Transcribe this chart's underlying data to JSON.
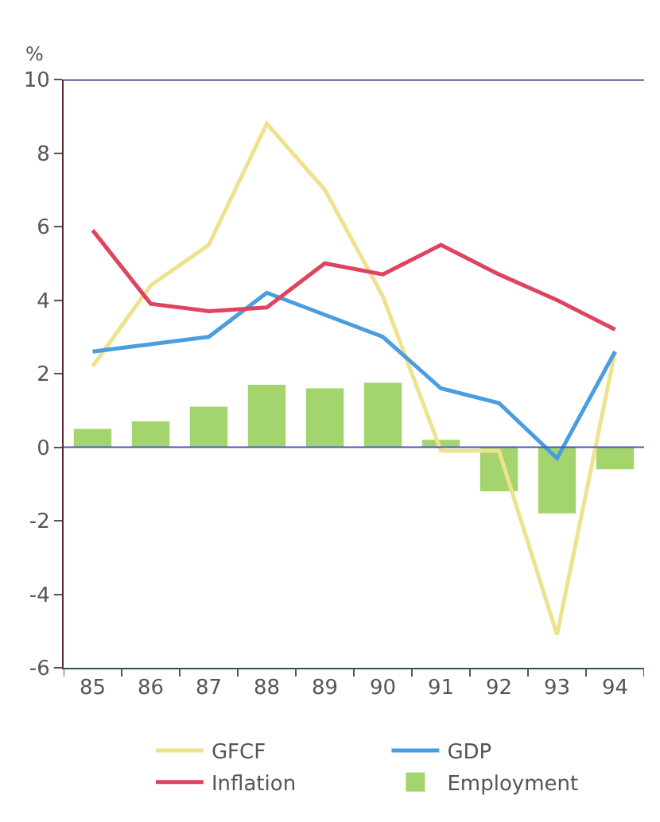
{
  "chart_data": {
    "type": "line",
    "ylabel": "%",
    "categories": [
      "85",
      "86",
      "87",
      "88",
      "89",
      "90",
      "91",
      "92",
      "93",
      "94"
    ],
    "series": [
      {
        "name": "GFCF",
        "color": "#eee28e",
        "values": [
          2.2,
          4.4,
          5.5,
          8.8,
          7.0,
          4.1,
          -0.1,
          -0.1,
          -5.1,
          2.6
        ]
      },
      {
        "name": "GDP",
        "color": "#4a9ee0",
        "values": [
          2.6,
          2.8,
          3.0,
          4.2,
          3.6,
          3.0,
          1.6,
          1.2,
          -0.3,
          2.6
        ]
      },
      {
        "name": "Inflation",
        "color": "#e0435e",
        "values": [
          5.9,
          3.9,
          3.7,
          3.8,
          5.0,
          4.7,
          5.5,
          4.7,
          4.0,
          3.2
        ]
      },
      {
        "name": "Employment",
        "type": "bar",
        "color": "#a3d46e",
        "values": [
          0.5,
          0.7,
          1.1,
          1.7,
          1.6,
          1.75,
          0.2,
          -1.2,
          -1.8,
          -0.6
        ]
      }
    ],
    "ylim": [
      -6,
      10
    ],
    "yticks": [
      -6,
      -4,
      -2,
      0,
      2,
      4,
      6,
      8,
      10
    ],
    "ref_lines": [
      {
        "axis": "y",
        "value": 0,
        "color": "#4a5ab0"
      }
    ],
    "grid": false,
    "legend": "bottom",
    "marker": "none",
    "line_style": "solid"
  }
}
